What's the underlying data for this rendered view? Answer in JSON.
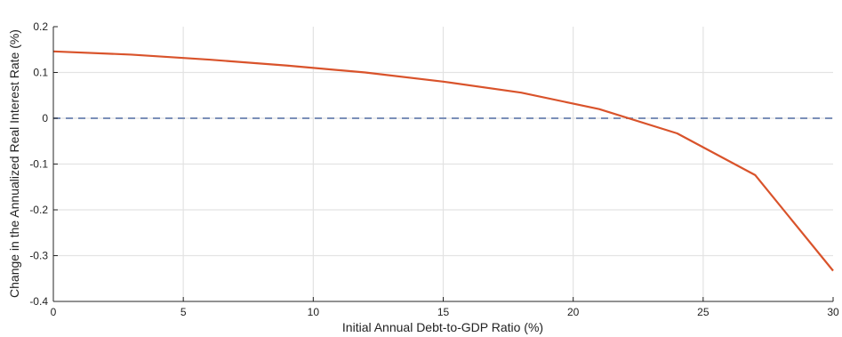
{
  "chart_data": {
    "type": "line",
    "title": "",
    "xlabel": "Initial Annual Debt-to-GDP Ratio (%)",
    "ylabel": "Change in the Annualized Real Interest Rate (%)",
    "xlim": [
      0,
      30
    ],
    "ylim": [
      -0.4,
      0.2
    ],
    "xticks": [
      0,
      5,
      10,
      15,
      20,
      25,
      30
    ],
    "yticks": [
      -0.4,
      -0.3,
      -0.2,
      -0.1,
      0,
      0.1,
      0.2
    ],
    "xtick_labels": [
      "0",
      "5",
      "10",
      "15",
      "20",
      "25",
      "30"
    ],
    "ytick_labels": [
      "-0.4",
      "-0.3",
      "-0.2",
      "-0.1",
      "0",
      "0.1",
      "0.2"
    ],
    "grid": true,
    "series": [
      {
        "color": "#d9532b",
        "style": "solid",
        "x": [
          0,
          3,
          6,
          9,
          12,
          15,
          18,
          21,
          24,
          27,
          30
        ],
        "y": [
          0.146,
          0.139,
          0.128,
          0.115,
          0.1,
          0.08,
          0.056,
          0.02,
          -0.033,
          -0.124,
          -0.333
        ]
      }
    ],
    "reference_line": {
      "y": 0,
      "color": "#7b8fb8",
      "style": "dashed"
    }
  }
}
